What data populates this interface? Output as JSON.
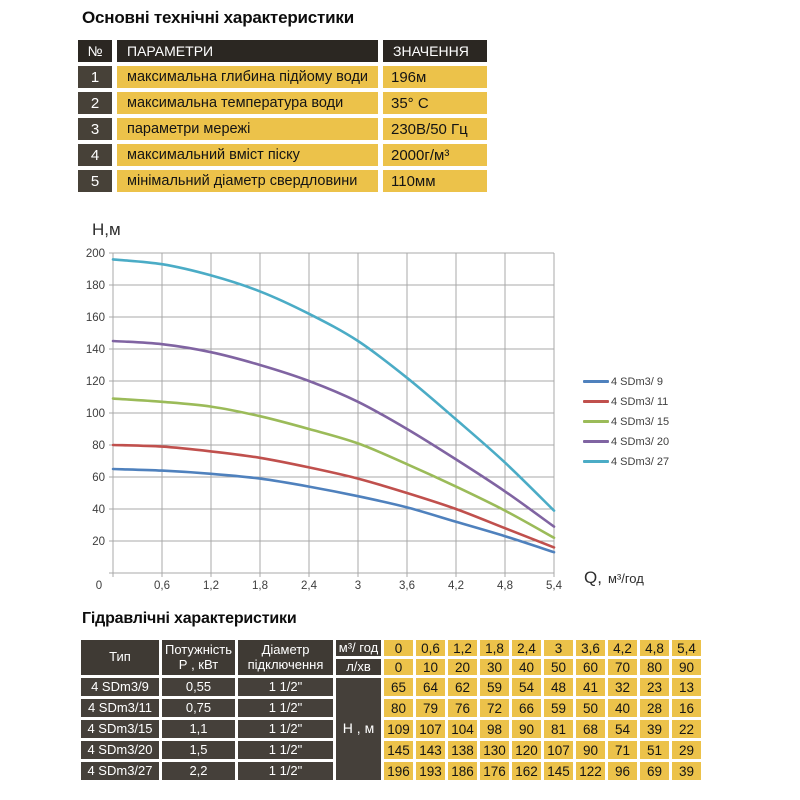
{
  "specs": {
    "title": "Основні технічні характеристики",
    "headers": {
      "num": "№",
      "param": "ПАРАМЕТРИ",
      "value": "ЗНАЧЕННЯ"
    },
    "rows": [
      {
        "num": "1",
        "param": "максимальна глибина підйому води",
        "value": "196м"
      },
      {
        "num": "2",
        "param": "максимальна температура води",
        "value": "35° С"
      },
      {
        "num": "3",
        "param": "параметри мережі",
        "value": "230В/50 Гц"
      },
      {
        "num": "4",
        "param": "максимальний вміст піску",
        "value": "2000г/м³"
      },
      {
        "num": "5",
        "param": "мінімальний діаметр свердловини",
        "value": "110мм"
      }
    ]
  },
  "chart_data": {
    "type": "line",
    "ylabel": "Н,м",
    "xlabel_q": "Q,",
    "xlabel_unit": "м³/год",
    "x": [
      0,
      0.6,
      1.2,
      1.8,
      2.4,
      3,
      3.6,
      4.2,
      4.8,
      5.4
    ],
    "x_labels": [
      "0",
      "0,6",
      "1,2",
      "1,8",
      "2,4",
      "3",
      "3,6",
      "4,2",
      "4,8",
      "5,4"
    ],
    "ylim": [
      0,
      200
    ],
    "ytick_step": 20,
    "grid": true,
    "legend_position": "right",
    "series": [
      {
        "name": "4 SDm3/ 9",
        "color": "#4F81BD",
        "values": [
          65,
          64,
          62,
          59,
          54,
          48,
          41,
          32,
          23,
          13
        ]
      },
      {
        "name": "4 SDm3/ 11",
        "color": "#C0504D",
        "values": [
          80,
          79,
          76,
          72,
          66,
          59,
          50,
          40,
          28,
          16
        ]
      },
      {
        "name": "4 SDm3/ 15",
        "color": "#9BBB59",
        "values": [
          109,
          107,
          104,
          98,
          90,
          81,
          68,
          54,
          39,
          22
        ]
      },
      {
        "name": "4 SDm3/ 20",
        "color": "#8064A2",
        "values": [
          145,
          143,
          138,
          130,
          120,
          107,
          90,
          71,
          51,
          29
        ]
      },
      {
        "name": "4 SDm3/ 27",
        "color": "#4BACC6",
        "values": [
          196,
          193,
          186,
          176,
          162,
          145,
          122,
          96,
          69,
          39
        ]
      }
    ]
  },
  "hydraulics": {
    "title": "Гідравлічні характеристики",
    "col_type": "Тип",
    "col_power": "Потужність\nР , кВт",
    "col_diameter": "Діаметр\nпідключення",
    "unit_flow": "м³/ год",
    "unit_lpm": "л/хв",
    "unit_head": "Н , м",
    "flow_values": [
      "0",
      "0,6",
      "1,2",
      "1,8",
      "2,4",
      "3",
      "3,6",
      "4,2",
      "4,8",
      "5,4"
    ],
    "lpm_values": [
      "0",
      "10",
      "20",
      "30",
      "40",
      "50",
      "60",
      "70",
      "80",
      "90"
    ],
    "rows": [
      {
        "type": "4 SDm3/9",
        "power": "0,55",
        "diameter": "1 1/2\"",
        "values": [
          65,
          64,
          62,
          59,
          54,
          48,
          41,
          32,
          23,
          13
        ]
      },
      {
        "type": "4 SDm3/11",
        "power": "0,75",
        "diameter": "1 1/2\"",
        "values": [
          80,
          79,
          76,
          72,
          66,
          59,
          50,
          40,
          28,
          16
        ]
      },
      {
        "type": "4 SDm3/15",
        "power": "1,1",
        "diameter": "1 1/2\"",
        "values": [
          109,
          107,
          104,
          98,
          90,
          81,
          68,
          54,
          39,
          22
        ]
      },
      {
        "type": "4 SDm3/20",
        "power": "1,5",
        "diameter": "1 1/2\"",
        "values": [
          145,
          143,
          138,
          130,
          120,
          107,
          90,
          71,
          51,
          29
        ]
      },
      {
        "type": "4 SDm3/27",
        "power": "2,2",
        "diameter": "1 1/2\"",
        "values": [
          196,
          193,
          186,
          176,
          162,
          145,
          122,
          96,
          69,
          39
        ]
      }
    ]
  },
  "colors": {
    "yellow": "#ECC24A",
    "dark_header": "#2B2722",
    "dark_cell": "#474138",
    "grid_line": "#A8A8A8",
    "tick_text": "#3D3D3D"
  }
}
